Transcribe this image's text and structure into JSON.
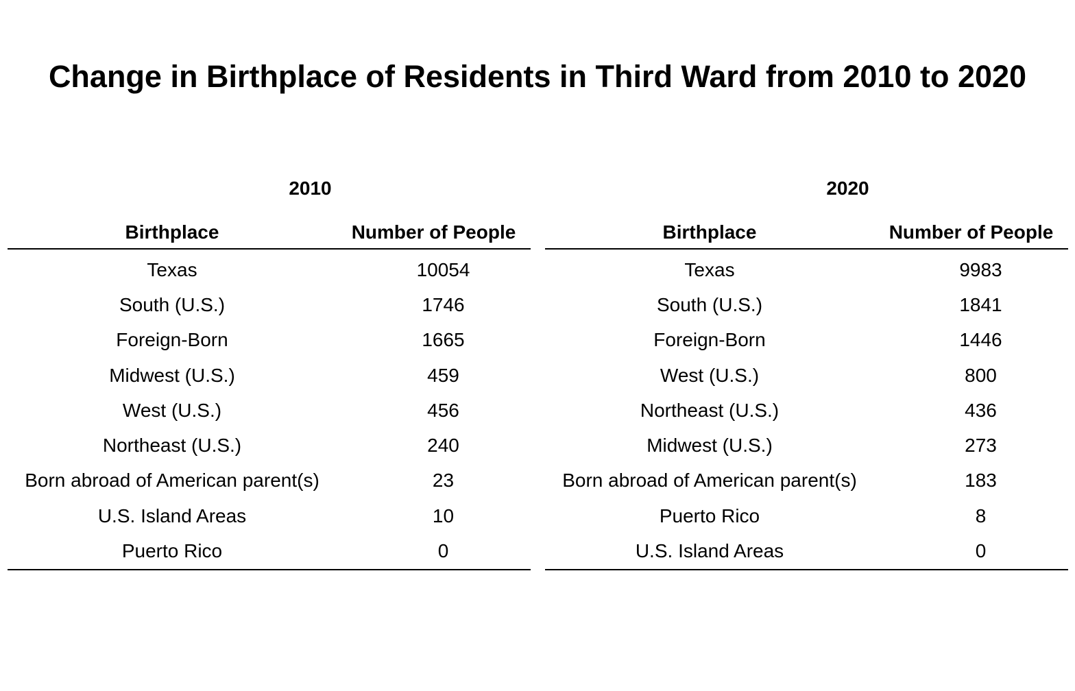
{
  "title": "Change in Birthplace of Residents in Third Ward from 2010 to 2020",
  "chart_data": {
    "type": "table",
    "title": "Change in Birthplace of Residents in Third Ward from 2010 to 2020",
    "tables": [
      {
        "year": "2010",
        "columns": [
          "Birthplace",
          "Number of People"
        ],
        "rows": [
          {
            "birthplace": "Texas",
            "count": "10054"
          },
          {
            "birthplace": "South (U.S.)",
            "count": "1746"
          },
          {
            "birthplace": "Foreign-Born",
            "count": "1665"
          },
          {
            "birthplace": "Midwest (U.S.)",
            "count": "459"
          },
          {
            "birthplace": "West (U.S.)",
            "count": "456"
          },
          {
            "birthplace": "Northeast (U.S.)",
            "count": "240"
          },
          {
            "birthplace": "Born abroad of American parent(s)",
            "count": "23"
          },
          {
            "birthplace": "U.S. Island Areas",
            "count": "10"
          },
          {
            "birthplace": "Puerto Rico",
            "count": "0"
          }
        ]
      },
      {
        "year": "2020",
        "columns": [
          "Birthplace",
          "Number of People"
        ],
        "rows": [
          {
            "birthplace": "Texas",
            "count": "9983"
          },
          {
            "birthplace": "South (U.S.)",
            "count": "1841"
          },
          {
            "birthplace": "Foreign-Born",
            "count": "1446"
          },
          {
            "birthplace": "West (U.S.)",
            "count": "800"
          },
          {
            "birthplace": "Northeast (U.S.)",
            "count": "436"
          },
          {
            "birthplace": "Midwest (U.S.)",
            "count": "273"
          },
          {
            "birthplace": "Born abroad of American parent(s)",
            "count": "183"
          },
          {
            "birthplace": "Puerto Rico",
            "count": "8"
          },
          {
            "birthplace": "U.S. Island Areas",
            "count": "0"
          }
        ]
      }
    ]
  }
}
